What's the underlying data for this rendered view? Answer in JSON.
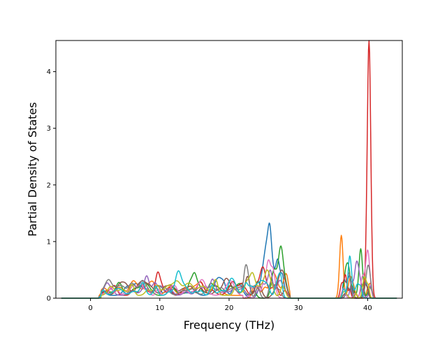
{
  "chart_data": {
    "type": "line",
    "title": "",
    "xlabel": "Frequency (THz)",
    "ylabel": "Partial Density of States",
    "xlim": [
      -5,
      45
    ],
    "ylim": [
      0,
      4.55
    ],
    "xticks": [
      0,
      10,
      20,
      30,
      40
    ],
    "yticks": [
      0,
      1,
      2,
      3,
      4
    ],
    "grid": false,
    "legend": "none",
    "series_count": 10,
    "series_colors": [
      "#1f77b4",
      "#ff7f0e",
      "#2ca02c",
      "#d62728",
      "#9467bd",
      "#8c564b",
      "#e377c2",
      "#7f7f7f",
      "#bcbd22",
      "#17becf"
    ],
    "baseline_range": [
      -4.2,
      44.2
    ],
    "peaks": [
      {
        "x": 40.2,
        "y": 4.33,
        "width": 0.25,
        "series": 3
      },
      {
        "x": 40.0,
        "y": 0.85,
        "width": 0.3,
        "series": 6
      },
      {
        "x": 36.2,
        "y": 1.11,
        "width": 0.25,
        "series": 1
      },
      {
        "x": 37.2,
        "y": 0.55,
        "width": 0.3,
        "series": 2
      },
      {
        "x": 38.4,
        "y": 0.62,
        "width": 0.3,
        "series": 4
      },
      {
        "x": 39.0,
        "y": 0.72,
        "width": 0.25,
        "series": 2
      },
      {
        "x": 25.6,
        "y": 0.59,
        "width": 0.5,
        "series": 0
      },
      {
        "x": 27.5,
        "y": 0.45,
        "width": 0.3,
        "series": 2
      },
      {
        "x": 28.3,
        "y": 0.35,
        "width": 0.3,
        "series": 1
      },
      {
        "x": 9.7,
        "y": 0.26,
        "width": 0.3,
        "series": 3
      },
      {
        "x": 6.0,
        "y": 0.19,
        "width": 0.3,
        "series": 8
      },
      {
        "x": 15.0,
        "y": 0.2,
        "width": 0.3,
        "series": 2
      }
    ]
  }
}
